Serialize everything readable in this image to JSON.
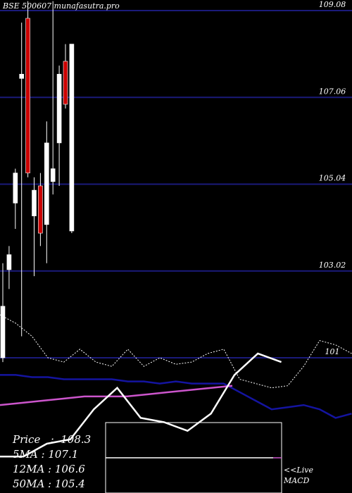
{
  "stock_label": "BSE 500607 munafasutra.pro",
  "legend": {
    "price_label": "Price",
    "price_value": "108.3",
    "ma5_label": "5MA",
    "ma5_value": "107.1",
    "ma12_label": "12MA",
    "ma12_value": "106.6",
    "ma50_label": "50MA",
    "ma50_value": "105.4"
  },
  "live_label": "<<Live",
  "macd_label": "MACD",
  "colors": {
    "background": "#000000",
    "grid": "#1a1a7a",
    "up_candle": "#ffffff",
    "down_candle": "#cc0000",
    "ma_fast": "#ffffff",
    "ma_mid": "#1414a0",
    "ma_slow": "#cc55cc",
    "text": "#ffffff"
  },
  "chart_data": {
    "type": "candlestick",
    "ylim": [
      100.1,
      109.3
    ],
    "grid_levels": [
      109.08,
      107.06,
      105.04,
      103.02,
      101
    ],
    "tick_labels": [
      "109.08",
      "107.06",
      "105.04",
      "103.02",
      "101"
    ],
    "candles": [
      {
        "open": 101.0,
        "high": 103.2,
        "low": 100.9,
        "close": 102.2
      },
      {
        "open": 103.05,
        "high": 103.6,
        "low": 102.6,
        "close": 103.4
      },
      {
        "open": 104.6,
        "high": 105.4,
        "low": 104.0,
        "close": 105.3
      },
      {
        "open": 107.5,
        "high": 108.8,
        "low": 101.5,
        "close": 107.6
      },
      {
        "open": 108.9,
        "high": 109.3,
        "low": 105.2,
        "close": 105.3
      },
      {
        "open": 104.3,
        "high": 105.2,
        "low": 102.9,
        "close": 104.9
      },
      {
        "open": 105.0,
        "high": 105.3,
        "low": 103.6,
        "close": 103.9
      },
      {
        "open": 104.1,
        "high": 106.5,
        "low": 103.2,
        "close": 106.0
      },
      {
        "open": 105.1,
        "high": 109.3,
        "low": 104.8,
        "close": 105.4
      },
      {
        "open": 106.0,
        "high": 107.8,
        "low": 105.0,
        "close": 107.6
      },
      {
        "open": 107.9,
        "high": 108.3,
        "low": 106.8,
        "close": 106.9
      },
      {
        "open": 103.95,
        "high": 108.3,
        "low": 103.9,
        "close": 108.3
      }
    ],
    "ma_lines": {
      "ma_fast": [
        102.0,
        101.8,
        101.5,
        101.0,
        100.9,
        101.2,
        100.9,
        100.8,
        101.2,
        100.8,
        101.0,
        100.85,
        100.9,
        101.1,
        101.2,
        100.5,
        100.4,
        100.3,
        100.35,
        100.8,
        101.4,
        101.3,
        101.1
      ],
      "ma_mid": [
        100.6,
        100.6,
        100.55,
        100.55,
        100.5,
        100.5,
        100.5,
        100.5,
        100.45,
        100.45,
        100.4,
        100.45,
        100.4,
        100.4,
        100.4,
        100.2,
        100.0,
        99.8,
        99.85,
        99.9,
        99.8,
        99.6,
        99.7
      ],
      "ma_slow": [
        99.9,
        99.95,
        100.0,
        100.05,
        100.1,
        100.1,
        100.1,
        100.15,
        100.2,
        100.25,
        100.3,
        100.35
      ]
    },
    "price_line": [
      98.7,
      98.7,
      99.0,
      99.1,
      99.8,
      100.3,
      99.6,
      99.5,
      99.3,
      99.7,
      100.6,
      101.1,
      100.9
    ]
  }
}
